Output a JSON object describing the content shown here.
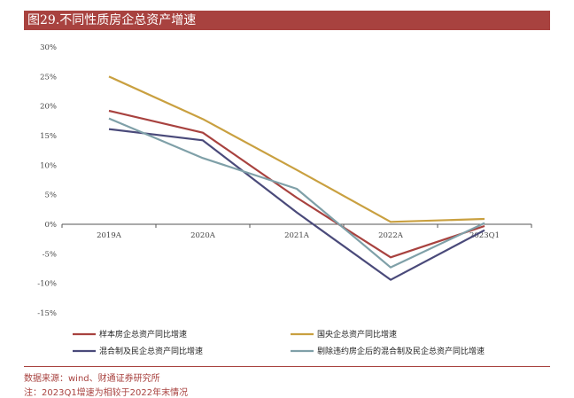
{
  "title": "图29.不同性质房企总资产增速",
  "source": "数据来源：wind、财通证券研究所",
  "note": "注：2023Q1增速为相较于2022年末情况",
  "colors": {
    "title_bg": "#a8423f",
    "series": [
      "#a8423f",
      "#c9a040",
      "#4a4a7a",
      "#7fa0a8"
    ]
  },
  "chart_data": {
    "type": "line",
    "title": "",
    "xlabel": "",
    "ylabel": "",
    "categories": [
      "2019A",
      "2020A",
      "2021A",
      "2022A",
      "2023Q1"
    ],
    "ylim": [
      -15,
      30
    ],
    "yticks": [
      "30%",
      "25%",
      "20%",
      "15%",
      "10%",
      "5%",
      "0%",
      "-5%",
      "-10%",
      "-15%"
    ],
    "yunit": "%",
    "grid": false,
    "legend_position": "bottom",
    "series": [
      {
        "name": "样本房企总资产同比增速",
        "values": [
          19.2,
          15.5,
          4.5,
          -5.6,
          -0.3
        ]
      },
      {
        "name": "国央企总资产同比增速",
        "values": [
          25.0,
          17.8,
          9.2,
          0.4,
          0.9
        ]
      },
      {
        "name": "混合制及民企总资产同比增速",
        "values": [
          16.1,
          14.2,
          2.0,
          -9.4,
          -1.0
        ]
      },
      {
        "name": "剔除违约房企后的混合制及民企总资产同比增速",
        "values": [
          17.9,
          11.2,
          6.0,
          -7.3,
          0.2
        ]
      }
    ]
  }
}
